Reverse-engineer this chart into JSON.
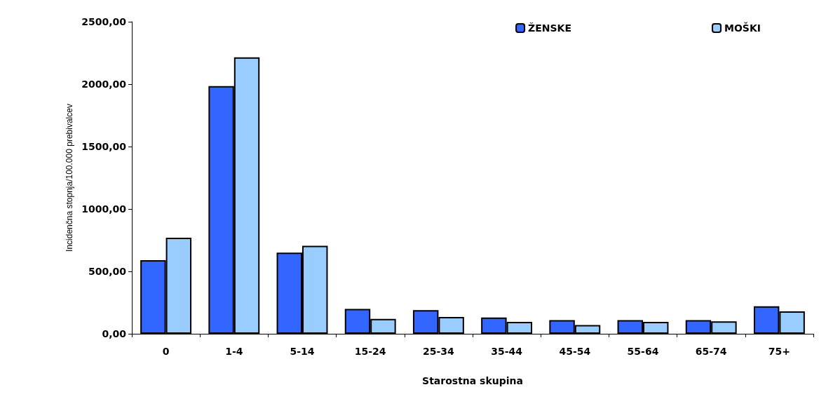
{
  "chart_data": {
    "type": "bar",
    "xlabel": "Starostna skupina",
    "ylabel": "Incidenčna stopnja/100.000 prebivalcev",
    "categories": [
      "0",
      "1-4",
      "5-14",
      "15-24",
      "25-34",
      "35-44",
      "45-54",
      "55-64",
      "65-74",
      "75+"
    ],
    "series": [
      {
        "name": "ŽENSKE",
        "color": "#3366ff",
        "values": [
          590,
          1985,
          650,
          200,
          190,
          130,
          110,
          110,
          110,
          220
        ]
      },
      {
        "name": "MOŠKI",
        "color": "#99ccff",
        "values": [
          770,
          2215,
          705,
          120,
          135,
          95,
          70,
          95,
          100,
          180
        ]
      }
    ],
    "ylim": [
      0,
      2500
    ],
    "yticks": [
      {
        "value": 0,
        "label": "0,00"
      },
      {
        "value": 500,
        "label": "500,00"
      },
      {
        "value": 1000,
        "label": "1000,00"
      },
      {
        "value": 1500,
        "label": "1500,00"
      },
      {
        "value": 2000,
        "label": "2000,00"
      },
      {
        "value": 2500,
        "label": "2500,00"
      }
    ],
    "grid": false,
    "legend": "top right"
  }
}
